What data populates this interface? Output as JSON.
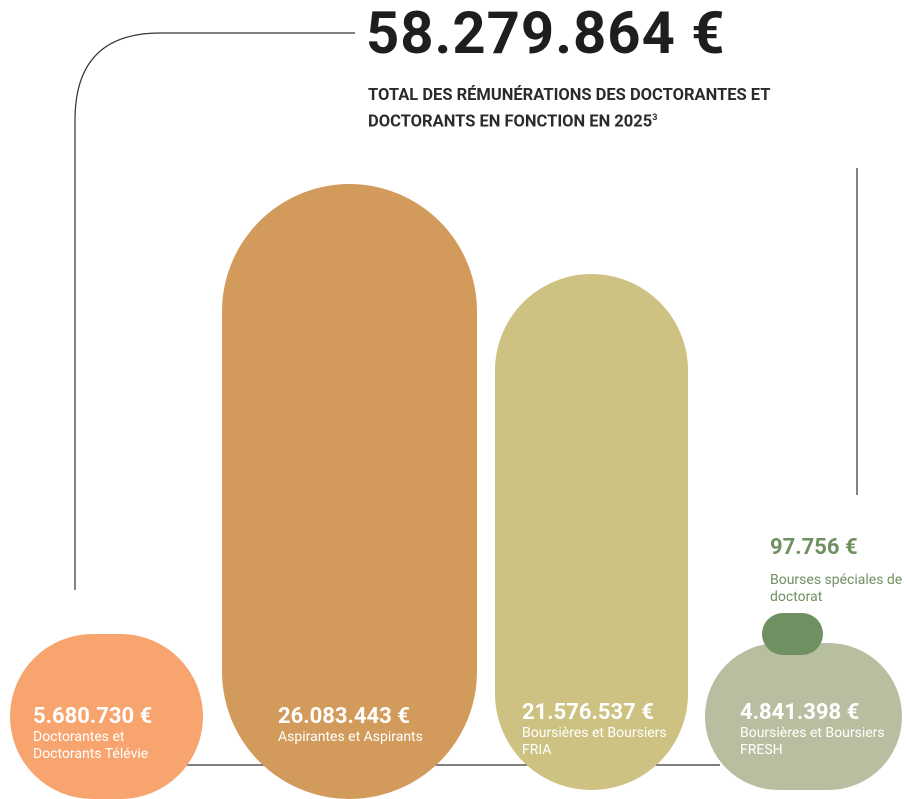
{
  "chart_data": {
    "type": "pill-bar",
    "title": "58.279.864 €",
    "total": 58279864,
    "subtitle": "TOTAL DES RÉMUNÉRATIONS DES DOCTORANTES ET DOCTORANTS EN FONCTION EN 2025",
    "footnote_mark": "3",
    "categories": [
      "Doctorantes et Doctorants Télévie",
      "Aspirantes et Aspirants",
      "Boursières et Boursiers FRIA",
      "Boursières et Boursiers FRESH",
      "Bourses spéciales de doctorat"
    ],
    "values": [
      5680730,
      26083443,
      21576537,
      4841398,
      97756
    ],
    "value_labels": [
      "5.680.730 €",
      "26.083.443 €",
      "21.576.537 €",
      "4.841.398 €",
      "97.756 €"
    ],
    "colors": [
      "#f7a46e",
      "#d29b5c",
      "#cdc281",
      "#b8bfa0",
      "#6f9060"
    ]
  }
}
